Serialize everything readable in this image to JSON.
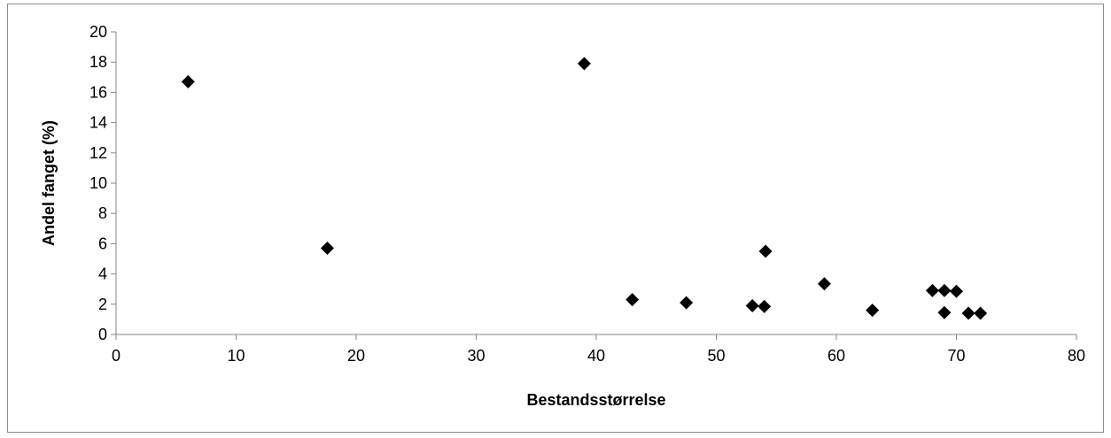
{
  "chart_data": {
    "type": "scatter",
    "title": "",
    "xlabel": "Bestandsstørrelse",
    "ylabel": "Andel fanget (%)",
    "xlim": [
      0,
      80
    ],
    "ylim": [
      0,
      20
    ],
    "x_ticks": [
      0,
      10,
      20,
      30,
      40,
      50,
      60,
      70,
      80
    ],
    "y_ticks": [
      0,
      2,
      4,
      6,
      8,
      10,
      12,
      14,
      16,
      18,
      20
    ],
    "grid": false,
    "legend": "none",
    "marker": "diamond",
    "marker_color": "#000000",
    "points": [
      {
        "x": 6,
        "y": 16.7
      },
      {
        "x": 17.6,
        "y": 5.7
      },
      {
        "x": 39,
        "y": 17.9
      },
      {
        "x": 43,
        "y": 2.3
      },
      {
        "x": 47.5,
        "y": 2.1
      },
      {
        "x": 53,
        "y": 1.9
      },
      {
        "x": 54,
        "y": 1.85
      },
      {
        "x": 54.1,
        "y": 5.5
      },
      {
        "x": 59,
        "y": 3.35
      },
      {
        "x": 63,
        "y": 1.6
      },
      {
        "x": 68,
        "y": 2.9
      },
      {
        "x": 69,
        "y": 2.9
      },
      {
        "x": 70,
        "y": 2.85
      },
      {
        "x": 69,
        "y": 1.45
      },
      {
        "x": 71,
        "y": 1.4
      },
      {
        "x": 72,
        "y": 1.4
      }
    ]
  }
}
